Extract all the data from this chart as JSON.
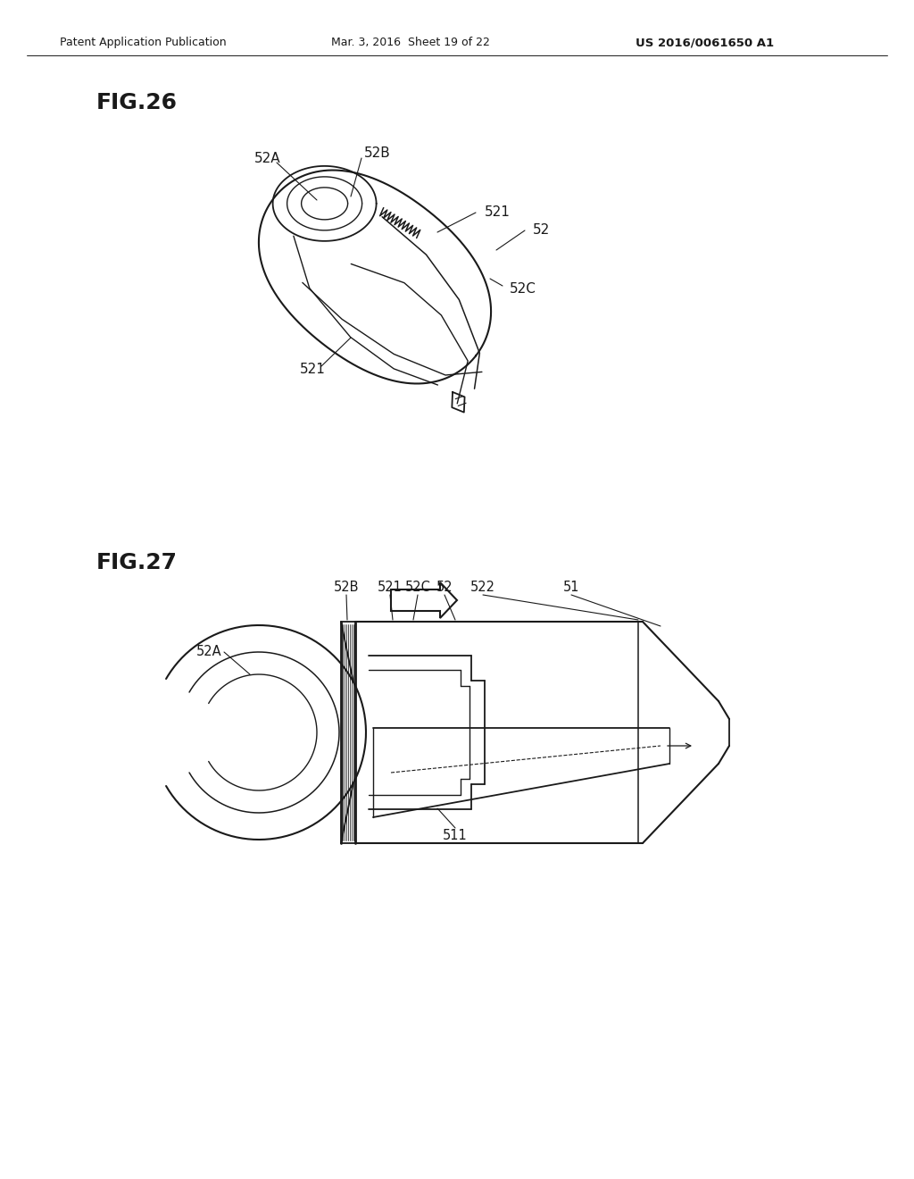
{
  "bg_color": "#ffffff",
  "header_left": "Patent Application Publication",
  "header_mid": "Mar. 3, 2016  Sheet 19 of 22",
  "header_right": "US 2016/0061650 A1",
  "fig26_label": "FIG.26",
  "fig27_label": "FIG.27",
  "line_color": "#1a1a1a",
  "text_color": "#1a1a1a"
}
